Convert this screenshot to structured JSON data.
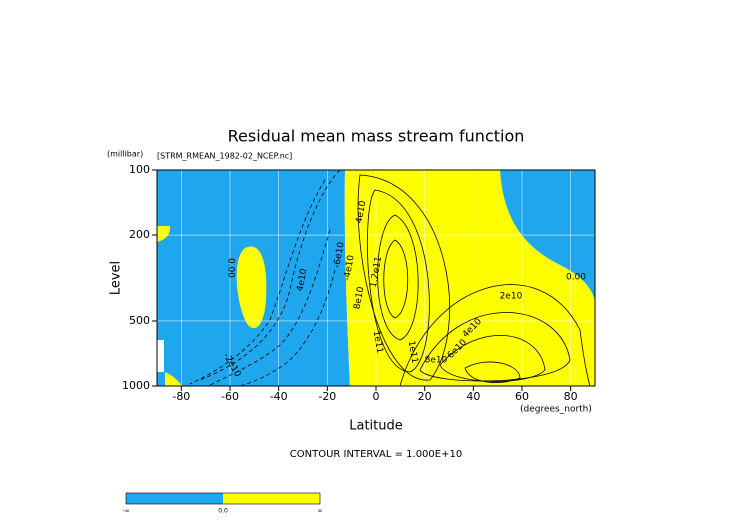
{
  "chart_data": {
    "type": "contour",
    "title": "Residual mean mass stream function",
    "subtitle": "[STRM_RMEAN_1982-02_NCEP.nc]",
    "y_unit": "(millibar)",
    "x_unit": "(degrees_north)",
    "x_label": "Latitude",
    "y_label": "Level",
    "xlim": [
      -90,
      90
    ],
    "xticks": [
      -80,
      -60,
      -40,
      -20,
      0,
      20,
      40,
      60,
      80
    ],
    "ylim": [
      1000,
      100
    ],
    "yticks": [
      100,
      200,
      500,
      1000
    ],
    "log_y": true,
    "grid": true,
    "contour_interval": "CONTOUR INTERVAL = 1.000E+10",
    "contour_labels": [
      "4e10",
      "0.00",
      "4e10",
      "-2e10",
      "0.00",
      "2e10",
      "1.2e11",
      "8e10",
      "1e11",
      "1e11",
      "8e10",
      "6e10",
      "4e10",
      "-6e10",
      "-4e10"
    ],
    "colors": {
      "negative": "#1ea7ef",
      "positive": "#ffff00"
    },
    "colorbar_labels": [
      "-∞",
      "0.0",
      "∞"
    ]
  }
}
